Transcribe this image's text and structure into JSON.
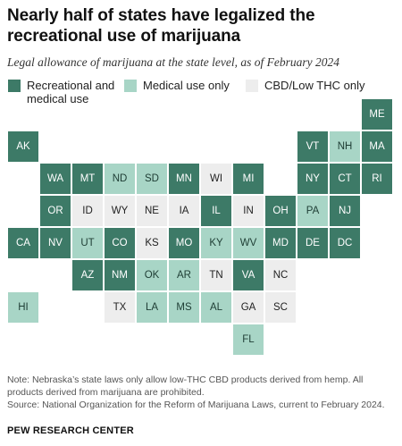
{
  "header": {
    "title": "Nearly half of states have legalized the recreational use of marijuana",
    "subtitle": "Legal allowance of marijuana at the state level, as of February 2024"
  },
  "legend": [
    {
      "key": "rec",
      "label": "Recreational and\nmedical use",
      "color": "#3d7a67"
    },
    {
      "key": "med",
      "label": "Medical use only",
      "color": "#a8d5c6"
    },
    {
      "key": "cbd",
      "label": "CBD/Low THC only",
      "color": "#ededed"
    }
  ],
  "chart_data": {
    "type": "tile-map",
    "categories": [
      "Recreational and medical use",
      "Medical use only",
      "CBD/Low THC only"
    ],
    "states": [
      {
        "abbr": "ME",
        "status": "rec",
        "row": 0,
        "col": 11
      },
      {
        "abbr": "AK",
        "status": "rec",
        "row": 1,
        "col": 0
      },
      {
        "abbr": "VT",
        "status": "rec",
        "row": 1,
        "col": 9
      },
      {
        "abbr": "NH",
        "status": "med",
        "row": 1,
        "col": 10
      },
      {
        "abbr": "MA",
        "status": "rec",
        "row": 1,
        "col": 11
      },
      {
        "abbr": "WA",
        "status": "rec",
        "row": 2,
        "col": 1
      },
      {
        "abbr": "MT",
        "status": "rec",
        "row": 2,
        "col": 2
      },
      {
        "abbr": "ND",
        "status": "med",
        "row": 2,
        "col": 3
      },
      {
        "abbr": "SD",
        "status": "med",
        "row": 2,
        "col": 4
      },
      {
        "abbr": "MN",
        "status": "rec",
        "row": 2,
        "col": 5
      },
      {
        "abbr": "WI",
        "status": "cbd",
        "row": 2,
        "col": 6
      },
      {
        "abbr": "MI",
        "status": "rec",
        "row": 2,
        "col": 7
      },
      {
        "abbr": "NY",
        "status": "rec",
        "row": 2,
        "col": 9
      },
      {
        "abbr": "CT",
        "status": "rec",
        "row": 2,
        "col": 10
      },
      {
        "abbr": "RI",
        "status": "rec",
        "row": 2,
        "col": 11
      },
      {
        "abbr": "OR",
        "status": "rec",
        "row": 3,
        "col": 1
      },
      {
        "abbr": "ID",
        "status": "cbd",
        "row": 3,
        "col": 2
      },
      {
        "abbr": "WY",
        "status": "cbd",
        "row": 3,
        "col": 3
      },
      {
        "abbr": "NE",
        "status": "cbd",
        "row": 3,
        "col": 4
      },
      {
        "abbr": "IA",
        "status": "cbd",
        "row": 3,
        "col": 5
      },
      {
        "abbr": "IL",
        "status": "rec",
        "row": 3,
        "col": 6
      },
      {
        "abbr": "IN",
        "status": "cbd",
        "row": 3,
        "col": 7
      },
      {
        "abbr": "OH",
        "status": "rec",
        "row": 3,
        "col": 8
      },
      {
        "abbr": "PA",
        "status": "med",
        "row": 3,
        "col": 9
      },
      {
        "abbr": "NJ",
        "status": "rec",
        "row": 3,
        "col": 10
      },
      {
        "abbr": "CA",
        "status": "rec",
        "row": 4,
        "col": 0
      },
      {
        "abbr": "NV",
        "status": "rec",
        "row": 4,
        "col": 1
      },
      {
        "abbr": "UT",
        "status": "med",
        "row": 4,
        "col": 2
      },
      {
        "abbr": "CO",
        "status": "rec",
        "row": 4,
        "col": 3
      },
      {
        "abbr": "KS",
        "status": "cbd",
        "row": 4,
        "col": 4
      },
      {
        "abbr": "MO",
        "status": "rec",
        "row": 4,
        "col": 5
      },
      {
        "abbr": "KY",
        "status": "med",
        "row": 4,
        "col": 6
      },
      {
        "abbr": "WV",
        "status": "med",
        "row": 4,
        "col": 7
      },
      {
        "abbr": "MD",
        "status": "rec",
        "row": 4,
        "col": 8
      },
      {
        "abbr": "DE",
        "status": "rec",
        "row": 4,
        "col": 9
      },
      {
        "abbr": "DC",
        "status": "rec",
        "row": 4,
        "col": 10
      },
      {
        "abbr": "AZ",
        "status": "rec",
        "row": 5,
        "col": 2
      },
      {
        "abbr": "NM",
        "status": "rec",
        "row": 5,
        "col": 3
      },
      {
        "abbr": "OK",
        "status": "med",
        "row": 5,
        "col": 4
      },
      {
        "abbr": "AR",
        "status": "med",
        "row": 5,
        "col": 5
      },
      {
        "abbr": "TN",
        "status": "cbd",
        "row": 5,
        "col": 6
      },
      {
        "abbr": "VA",
        "status": "rec",
        "row": 5,
        "col": 7
      },
      {
        "abbr": "NC",
        "status": "cbd",
        "row": 5,
        "col": 8
      },
      {
        "abbr": "HI",
        "status": "med",
        "row": 6,
        "col": 0
      },
      {
        "abbr": "TX",
        "status": "cbd",
        "row": 6,
        "col": 3
      },
      {
        "abbr": "LA",
        "status": "med",
        "row": 6,
        "col": 4
      },
      {
        "abbr": "MS",
        "status": "med",
        "row": 6,
        "col": 5
      },
      {
        "abbr": "AL",
        "status": "med",
        "row": 6,
        "col": 6
      },
      {
        "abbr": "GA",
        "status": "cbd",
        "row": 6,
        "col": 7
      },
      {
        "abbr": "SC",
        "status": "cbd",
        "row": 6,
        "col": 8
      },
      {
        "abbr": "FL",
        "status": "med",
        "row": 7,
        "col": 7
      }
    ]
  },
  "notes": {
    "note_line1": "Note: Nebraska’s state laws only allow low-THC CBD products derived from hemp. All",
    "note_line2": "products derived from marijuana are prohibited.",
    "source": "Source: National Organization for the Reform of Marijuana Laws, current to February 2024."
  },
  "footer": {
    "org": "PEW RESEARCH CENTER"
  }
}
